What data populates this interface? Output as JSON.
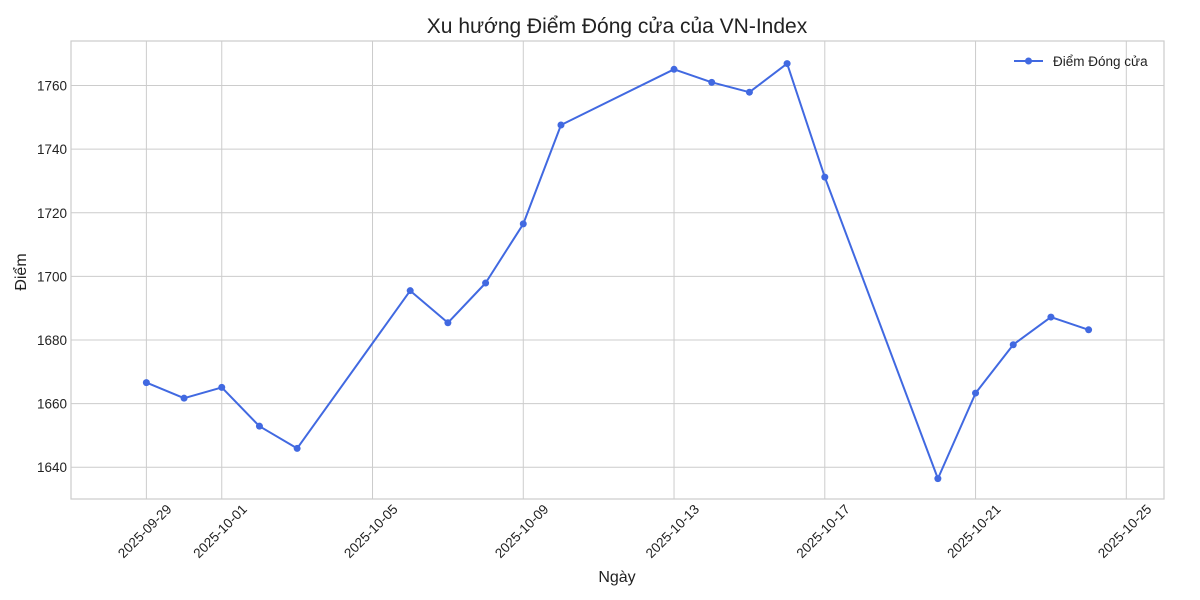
{
  "chart_data": {
    "type": "line",
    "title": "Xu hướng Điểm Đóng cửa của VN-Index",
    "xlabel": "Ngày",
    "ylabel": "Điểm",
    "x_ticks": [
      "2025-09-29",
      "2025-10-01",
      "2025-10-05",
      "2025-10-09",
      "2025-10-13",
      "2025-10-17",
      "2025-10-21",
      "2025-10-25"
    ],
    "y_ticks": [
      1640,
      1660,
      1680,
      1700,
      1720,
      1740,
      1760
    ],
    "xlim": [
      "2025-09-27",
      "2025-10-26"
    ],
    "ylim": [
      1630,
      1774
    ],
    "grid": true,
    "legend_position": "top-right",
    "series": [
      {
        "name": "Điểm Đóng cửa",
        "color": "#4169e1",
        "marker": "circle",
        "points": [
          {
            "x": "2025-09-29",
            "y": 1666.6
          },
          {
            "x": "2025-09-30",
            "y": 1661.7
          },
          {
            "x": "2025-10-01",
            "y": 1665.1
          },
          {
            "x": "2025-10-02",
            "y": 1652.9
          },
          {
            "x": "2025-10-03",
            "y": 1645.9
          },
          {
            "x": "2025-10-06",
            "y": 1695.5
          },
          {
            "x": "2025-10-07",
            "y": 1685.4
          },
          {
            "x": "2025-10-08",
            "y": 1697.9
          },
          {
            "x": "2025-10-09",
            "y": 1716.5
          },
          {
            "x": "2025-10-10",
            "y": 1747.6
          },
          {
            "x": "2025-10-13",
            "y": 1765.1
          },
          {
            "x": "2025-10-14",
            "y": 1761.0
          },
          {
            "x": "2025-10-15",
            "y": 1757.9
          },
          {
            "x": "2025-10-16",
            "y": 1766.9
          },
          {
            "x": "2025-10-17",
            "y": 1731.2
          },
          {
            "x": "2025-10-20",
            "y": 1636.4
          },
          {
            "x": "2025-10-21",
            "y": 1663.3
          },
          {
            "x": "2025-10-22",
            "y": 1678.5
          },
          {
            "x": "2025-10-23",
            "y": 1687.2
          },
          {
            "x": "2025-10-24",
            "y": 1683.2
          }
        ]
      }
    ]
  }
}
